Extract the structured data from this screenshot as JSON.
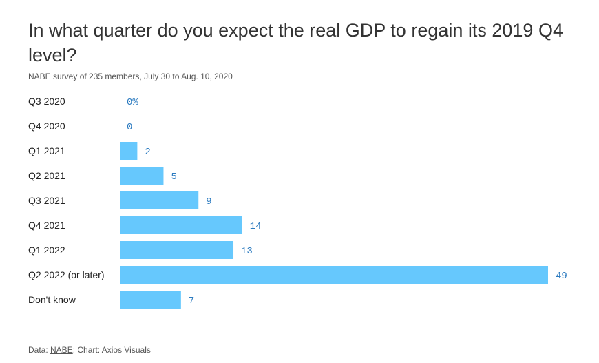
{
  "title": "In what quarter do you expect the real GDP to regain its 2019 Q4 level?",
  "subtitle": "NABE survey of 235 members, July 30 to Aug. 10, 2020",
  "footer": {
    "prefix": "Data: ",
    "source_link": "NABE",
    "suffix": "; Chart: Axios Visuals"
  },
  "colors": {
    "bar": "#66c8fd",
    "value_label": "#2c7bc0",
    "category_label": "#222222"
  },
  "chart_data": {
    "type": "bar",
    "orientation": "horizontal",
    "title": "In what quarter do you expect the real GDP to regain its 2019 Q4 level?",
    "categories": [
      "Q3 2020",
      "Q4 2020",
      "Q1 2021",
      "Q2 2021",
      "Q3 2021",
      "Q4 2021",
      "Q1 2022",
      "Q2 2022 (or later)",
      "Don't know"
    ],
    "values": [
      0,
      0,
      2,
      5,
      9,
      14,
      13,
      49,
      7
    ],
    "value_labels": [
      "0%",
      "0",
      "2",
      "5",
      "9",
      "14",
      "13",
      "49",
      "7"
    ],
    "unit": "%",
    "xlim": [
      0,
      49
    ],
    "grid": false,
    "legend": "none"
  }
}
